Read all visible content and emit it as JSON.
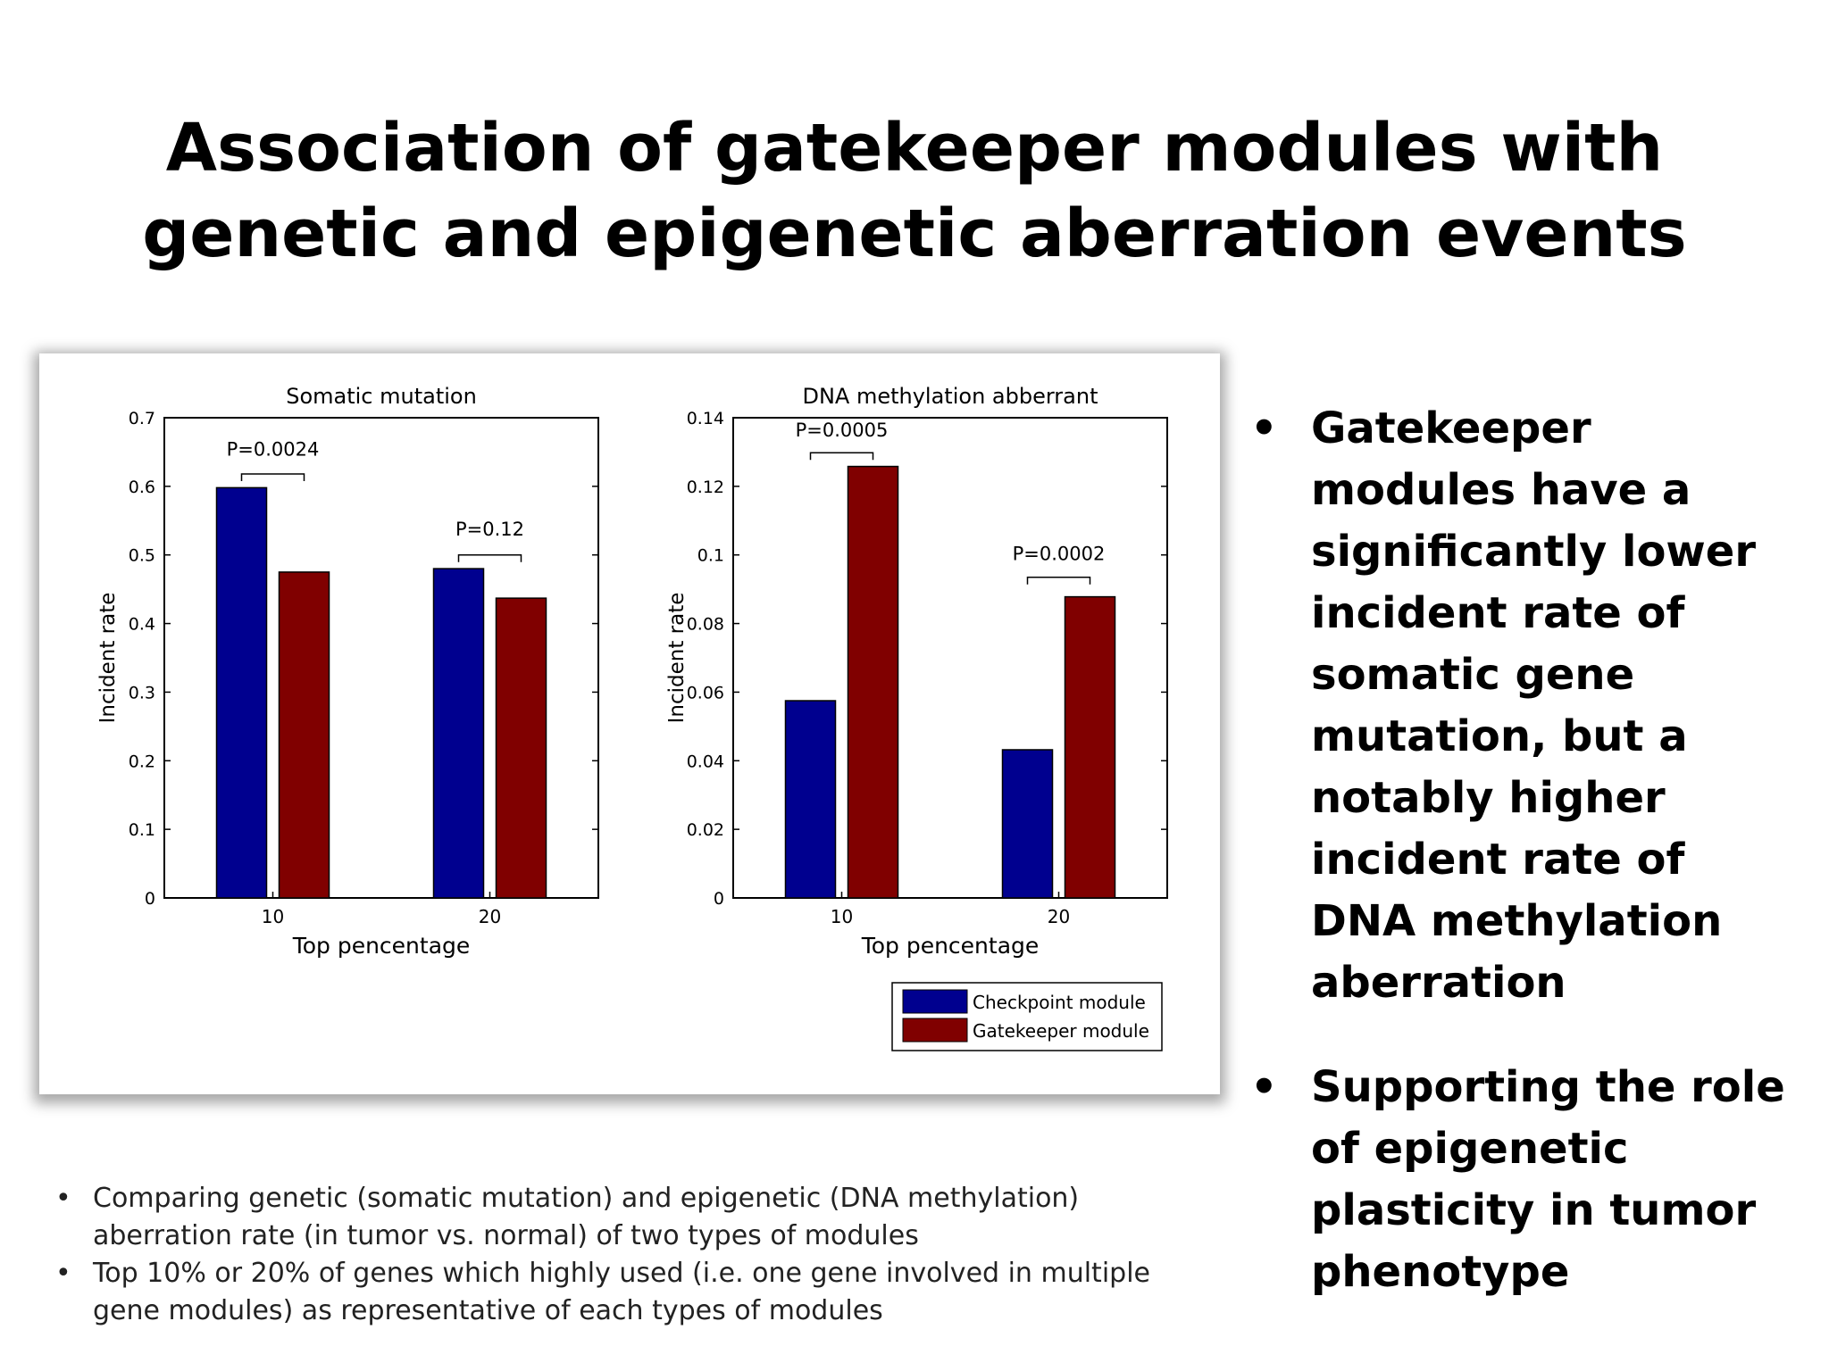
{
  "slide": {
    "title_lines": [
      "Association of gatekeeper modules with",
      "genetic and epigenetic aberration events"
    ],
    "bullets": [
      "Gatekeeper modules have a significantly lower incident rate of somatic gene mutation, but a notably higher incident rate of DNA methylation aberration",
      "Supporting the role of epigenetic plasticity in tumor phenotype"
    ],
    "notes": [
      "Comparing genetic (somatic mutation) and epigenetic (DNA methylation) aberration rate (in tumor vs. normal) of two types of modules",
      "Top 10% or 20% of genes which highly used (i.e. one gene involved in multiple gene modules) as representative of each types of modules"
    ]
  },
  "legend": {
    "placement": "bottom-right"
  },
  "colors": {
    "checkpoint": "#00008f",
    "gatekeeper": "#800000"
  },
  "chart_data": [
    {
      "type": "bar",
      "title": "Somatic mutation",
      "xlabel": "Top pencentage",
      "ylabel": "Incident rate",
      "categories": [
        "10",
        "20"
      ],
      "ylim": [
        0,
        0.7
      ],
      "yticks": [
        "0",
        "0.1",
        "0.2",
        "0.3",
        "0.4",
        "0.5",
        "0.6",
        "0.7"
      ],
      "series": [
        {
          "name": "Checkpoint module",
          "values": [
            0.598,
            0.48
          ]
        },
        {
          "name": "Gatekeeper module",
          "values": [
            0.475,
            0.437
          ]
        }
      ],
      "annotations": [
        {
          "label": "P=0.0024",
          "category": "10",
          "y": 0.618,
          "label_y": 0.645
        },
        {
          "label": "P=0.12",
          "category": "20",
          "y": 0.5,
          "label_y": 0.528
        }
      ]
    },
    {
      "type": "bar",
      "title": "DNA methylation abberrant",
      "xlabel": "Top pencentage",
      "ylabel": "Incident rate",
      "categories": [
        "10",
        "20"
      ],
      "ylim": [
        0,
        0.14
      ],
      "yticks": [
        "0",
        "0.02",
        "0.04",
        "0.06",
        "0.08",
        "0.1",
        "0.12",
        "0.14"
      ],
      "series": [
        {
          "name": "Checkpoint module",
          "values": [
            0.0575,
            0.0432
          ]
        },
        {
          "name": "Gatekeeper module",
          "values": [
            0.1258,
            0.0878
          ]
        }
      ],
      "annotations": [
        {
          "label": "P=0.0005",
          "category": "10",
          "y": 0.1298,
          "label_y": 0.1345
        },
        {
          "label": "P=0.0002",
          "category": "20",
          "y": 0.0935,
          "label_y": 0.0985
        }
      ]
    }
  ]
}
